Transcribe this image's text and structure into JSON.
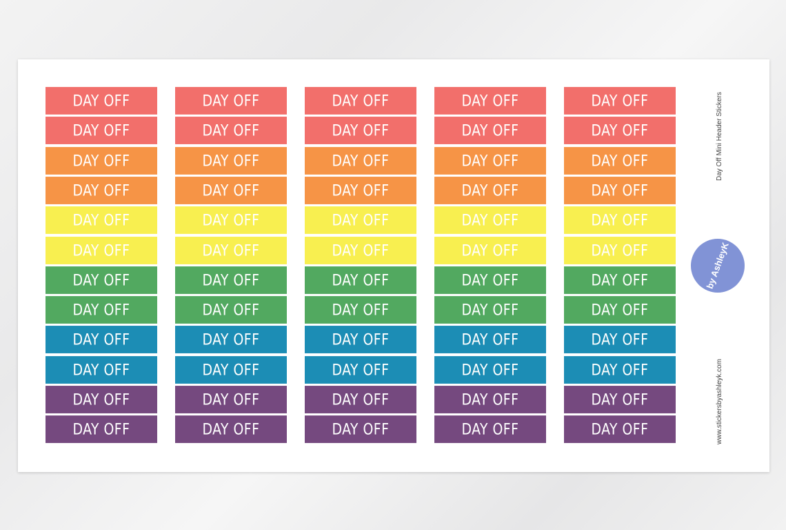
{
  "sheet": {
    "sticker_label": "DAY OFF",
    "columns": 5,
    "row_colors": [
      "#f26f6b",
      "#f26f6b",
      "#f69446",
      "#f69446",
      "#f8ef50",
      "#f8ef50",
      "#52a960",
      "#52a960",
      "#1c8db5",
      "#1c8db5",
      "#75497f",
      "#75497f"
    ],
    "title": "Day Off Mini Header Stickers",
    "website": "www.stickersbyashleyk.com",
    "logo": {
      "text": "by AshleyK",
      "color": "#8193d6"
    }
  }
}
